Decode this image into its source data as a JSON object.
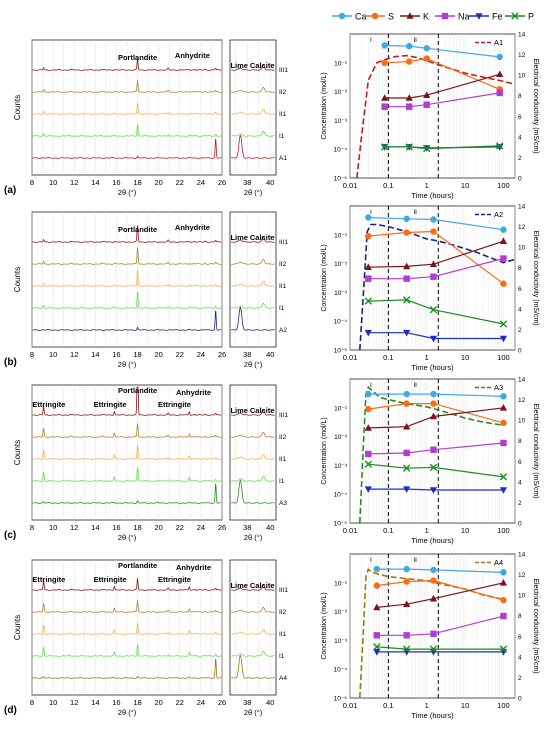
{
  "legend_top": [
    {
      "name": "Ca",
      "color": "#3fa9e6",
      "marker": "circle"
    },
    {
      "name": "S",
      "color": "#ff6a13",
      "marker": "circle"
    },
    {
      "name": "K",
      "color": "#7b1416",
      "marker": "triangle-up"
    },
    {
      "name": "Na",
      "color": "#b23cd1",
      "marker": "square"
    },
    {
      "name": "Fe",
      "color": "#1a2fc8",
      "marker": "triangle-down"
    },
    {
      "name": "P",
      "color": "#1e8c23",
      "marker": "x"
    }
  ],
  "xrd_common": {
    "ylabel": "Counts",
    "xlabel": "2θ (°)",
    "xticks_main": [
      "8",
      "10",
      "12",
      "14",
      "16",
      "18",
      "20",
      "22",
      "24",
      "26"
    ],
    "xticks_side": [
      "38",
      "40"
    ],
    "grid": true,
    "traces": [
      {
        "label": "III1",
        "color": "#8b1a1a"
      },
      {
        "label": "II2",
        "color": "#b5852c"
      },
      {
        "label": "II1",
        "color": "#f2b34b"
      },
      {
        "label": "I1",
        "color": "#62e04f"
      }
    ]
  },
  "kinetics_common": {
    "ylabel": "Concentration (mol/L)",
    "y2label": "Electrical conductivity (mS/cm)",
    "xlabel": "Time (hours)",
    "xticks": [
      "0.01",
      "0.1",
      "1",
      "10",
      "100"
    ],
    "yticks": [
      "10⁻⁵",
      "10⁻⁴",
      "10⁻³",
      "10⁻²",
      "10⁻¹"
    ],
    "y2ticks": [
      "0",
      "2",
      "4",
      "6",
      "8",
      "10",
      "12",
      "14"
    ],
    "y2lim": [
      0,
      14
    ],
    "xscale": "log",
    "yscale": "log",
    "xlim": [
      0.01,
      200
    ],
    "ylim": [
      1e-05,
      1
    ],
    "stage_labels": [
      "I",
      "II",
      "III"
    ]
  },
  "panels": [
    {
      "panel_label": "(a)",
      "sample": "A1",
      "sample_color": "#c31d1d",
      "peaks": [
        "Portlandite",
        "Anhydrite",
        "Lime",
        "Calcite"
      ],
      "chart_data": {
        "type": "line",
        "xscale": "log",
        "yscale": "log",
        "vlines": [
          0.1,
          2
        ],
        "series": [
          {
            "name": "Ca",
            "x": [
              0.08,
              0.35,
              1,
              80
            ],
            "y": [
              0.4,
              0.38,
              0.32,
              0.16
            ]
          },
          {
            "name": "S",
            "x": [
              0.08,
              0.35,
              1,
              80
            ],
            "y": [
              0.1,
              0.11,
              0.14,
              0.012
            ]
          },
          {
            "name": "K",
            "x": [
              0.08,
              0.35,
              1,
              80
            ],
            "y": [
              0.006,
              0.006,
              0.0075,
              0.04
            ]
          },
          {
            "name": "Na",
            "x": [
              0.08,
              0.35,
              1,
              80
            ],
            "y": [
              0.003,
              0.003,
              0.0035,
              0.009
            ]
          },
          {
            "name": "Fe",
            "x": [
              0.08,
              0.35,
              1,
              80
            ],
            "y": [
              0.00012,
              0.00012,
              0.00011,
              0.00012
            ]
          },
          {
            "name": "P",
            "x": [
              0.08,
              0.35,
              1,
              80
            ],
            "y": [
              0.00012,
              0.00012,
              0.000105,
              0.00013
            ]
          }
        ],
        "conductivity": {
          "name": "A1",
          "x": [
            0.015,
            0.02,
            0.03,
            0.05,
            0.08,
            0.15,
            0.3,
            0.6,
            1,
            3,
            10,
            30,
            100,
            200
          ],
          "y": [
            0,
            4,
            9.5,
            11.2,
            11.5,
            11.8,
            11.9,
            11.7,
            11.4,
            10.8,
            10.2,
            9.8,
            9.4,
            9.1
          ]
        }
      }
    },
    {
      "panel_label": "(b)",
      "sample": "A2",
      "sample_color": "#1a237e",
      "peaks": [
        "Portlandite",
        "Anhydrite",
        "Lime",
        "Calcite"
      ],
      "chart_data": {
        "type": "line",
        "xscale": "log",
        "yscale": "log",
        "vlines": [
          0.1,
          2
        ],
        "series": [
          {
            "name": "Ca",
            "x": [
              0.03,
              0.3,
              1.5,
              100
            ],
            "y": [
              0.4,
              0.36,
              0.34,
              0.15
            ]
          },
          {
            "name": "S",
            "x": [
              0.03,
              0.3,
              1.5,
              100
            ],
            "y": [
              0.09,
              0.12,
              0.13,
              0.002
            ]
          },
          {
            "name": "K",
            "x": [
              0.03,
              0.3,
              1.5,
              100
            ],
            "y": [
              0.0075,
              0.008,
              0.0095,
              0.06
            ]
          },
          {
            "name": "Na",
            "x": [
              0.03,
              0.3,
              1.5,
              100
            ],
            "y": [
              0.003,
              0.003,
              0.0035,
              0.015
            ]
          },
          {
            "name": "Fe",
            "x": [
              0.03,
              0.3,
              1.5,
              100
            ],
            "y": [
              4e-05,
              4e-05,
              2.5e-05,
              2.5e-05
            ]
          },
          {
            "name": "P",
            "x": [
              0.03,
              0.3,
              1.5,
              100
            ],
            "y": [
              0.0005,
              0.00055,
              0.00025,
              8e-05
            ]
          }
        ],
        "conductivity": {
          "name": "A2",
          "x": [
            0.018,
            0.022,
            0.028,
            0.035,
            0.05,
            0.1,
            0.3,
            1,
            2,
            5,
            20,
            60,
            100,
            200
          ],
          "y": [
            0,
            5,
            11.5,
            12.2,
            12.2,
            12.0,
            11.5,
            10.8,
            10.6,
            10.2,
            9.5,
            8.8,
            8.5,
            8.8
          ]
        }
      }
    },
    {
      "panel_label": "(c)",
      "sample": "A3",
      "sample_color": "#2a8c1f",
      "peaks": [
        "Ettringite",
        "Ettringite",
        "Portlandite",
        "Ettringite",
        "Anhydrite",
        "Lime",
        "Calcite"
      ],
      "chart_data": {
        "type": "line",
        "xscale": "log",
        "yscale": "log",
        "vlines": [
          0.1,
          2
        ],
        "series": [
          {
            "name": "Ca",
            "x": [
              0.03,
              0.3,
              1.5,
              100
            ],
            "y": [
              0.3,
              0.3,
              0.3,
              0.25
            ]
          },
          {
            "name": "S",
            "x": [
              0.03,
              0.3,
              1.5,
              100
            ],
            "y": [
              0.09,
              0.14,
              0.14,
              0.03
            ]
          },
          {
            "name": "K",
            "x": [
              0.03,
              0.3,
              1.5,
              100
            ],
            "y": [
              0.02,
              0.022,
              0.05,
              0.1
            ]
          },
          {
            "name": "Na",
            "x": [
              0.03,
              0.3,
              1.5,
              100
            ],
            "y": [
              0.0025,
              0.0027,
              0.0035,
              0.006
            ]
          },
          {
            "name": "Fe",
            "x": [
              0.03,
              0.3,
              1.5,
              100
            ],
            "y": [
              0.00015,
              0.00015,
              0.00014,
              0.00014
            ]
          },
          {
            "name": "P",
            "x": [
              0.03,
              0.3,
              1.5,
              100
            ],
            "y": [
              0.0011,
              0.0008,
              0.00085,
              0.0004
            ]
          }
        ],
        "conductivity": {
          "name": "A3",
          "x": [
            0.018,
            0.022,
            0.026,
            0.03,
            0.04,
            0.06,
            0.1,
            0.3,
            1,
            3,
            10,
            30,
            100
          ],
          "y": [
            0,
            7,
            12.5,
            13.2,
            12.8,
            12.2,
            12.0,
            11.6,
            11.3,
            10.8,
            10.2,
            9.8,
            9.5
          ]
        }
      }
    },
    {
      "panel_label": "(d)",
      "sample": "A4",
      "sample_color": "#9a7a10",
      "peaks": [
        "Ettringite",
        "Ettringite",
        "Portlandite",
        "Ettringite",
        "Anhydrite",
        "Lime",
        "Calcite"
      ],
      "chart_data": {
        "type": "line",
        "xscale": "log",
        "yscale": "log",
        "vlines": [
          0.1,
          2
        ],
        "series": [
          {
            "name": "Ca",
            "x": [
              0.05,
              0.3,
              1.5,
              100
            ],
            "y": [
              0.3,
              0.3,
              0.28,
              0.23
            ]
          },
          {
            "name": "S",
            "x": [
              0.05,
              0.3,
              1.5,
              100
            ],
            "y": [
              0.08,
              0.11,
              0.12,
              0.025
            ]
          },
          {
            "name": "K",
            "x": [
              0.05,
              0.3,
              1.5,
              100
            ],
            "y": [
              0.014,
              0.018,
              0.028,
              0.1
            ]
          },
          {
            "name": "Na",
            "x": [
              0.05,
              0.3,
              1.5,
              100
            ],
            "y": [
              0.0015,
              0.0015,
              0.0017,
              0.007
            ]
          },
          {
            "name": "Fe",
            "x": [
              0.05,
              0.3,
              1.5,
              100
            ],
            "y": [
              0.0004,
              0.0004,
              0.0004,
              0.0004
            ]
          },
          {
            "name": "P",
            "x": [
              0.05,
              0.3,
              1.5,
              100
            ],
            "y": [
              0.0006,
              0.0005,
              0.0005,
              0.0005
            ]
          }
        ],
        "conductivity": {
          "name": "A4",
          "x": [
            0.018,
            0.022,
            0.026,
            0.03,
            0.04,
            0.06,
            0.1,
            0.3,
            1,
            3,
            10,
            30,
            100
          ],
          "y": [
            0,
            6,
            11.8,
            12.5,
            12.2,
            12.0,
            11.8,
            11.6,
            11.4,
            11.0,
            10.6,
            10.0,
            9.6
          ]
        }
      }
    }
  ]
}
